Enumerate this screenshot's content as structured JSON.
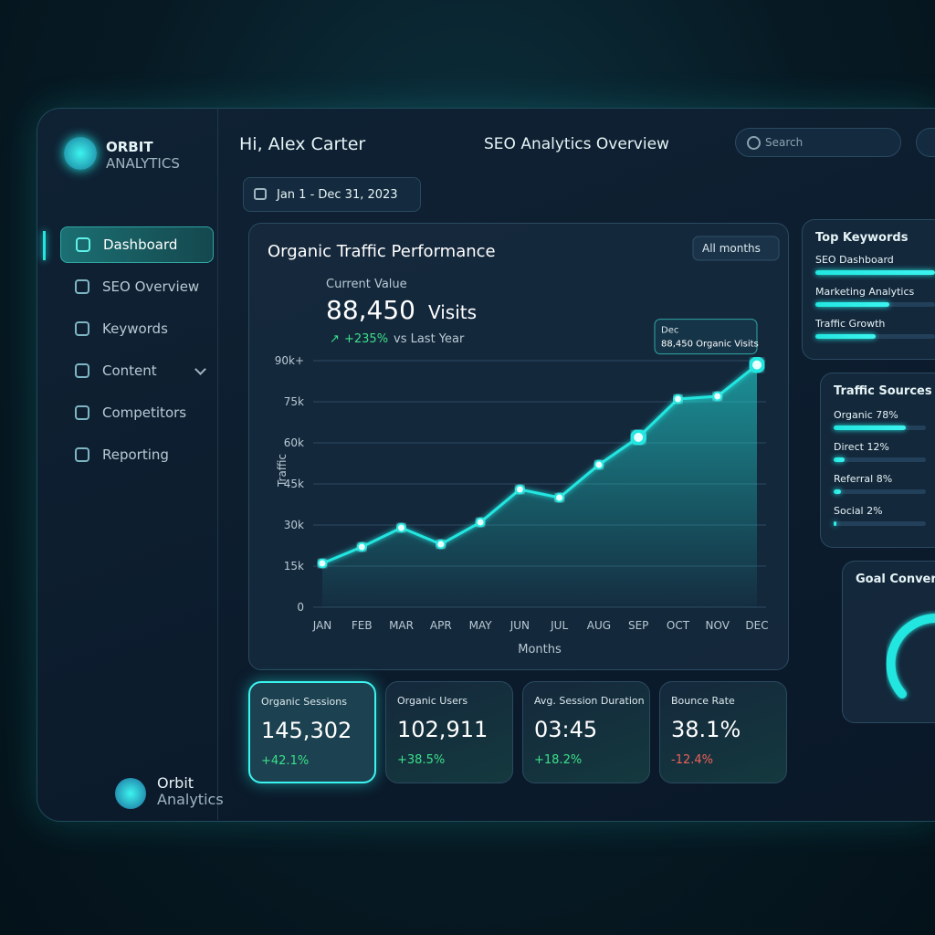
{
  "sidebar": {
    "brand": {
      "name": "ORBIT",
      "tagline": "ANALYTICS"
    },
    "nav": [
      {
        "label": "Dashboard",
        "active": true
      },
      {
        "label": "SEO Overview"
      },
      {
        "label": "Keywords"
      },
      {
        "label": "Content",
        "expandable": true
      },
      {
        "label": "Competitors"
      },
      {
        "label": "Reporting"
      }
    ],
    "footer_brand": {
      "name": "Orbit",
      "tagline": "Analytics"
    }
  },
  "header": {
    "greeting": "Hi, Alex Carter",
    "title": "SEO Analytics Overview",
    "search_placeholder": "Search",
    "date_range": "Jan 1 - Dec 31, 2023"
  },
  "chart_data": {
    "type": "line",
    "title": "Organic Traffic Performance",
    "filter": "All months",
    "current_value_label": "Current Value",
    "current_value": "88,450",
    "current_value_unit": "Visits",
    "change": "+235%",
    "change_note": "vs Last Year",
    "y_label": "Traffic",
    "x_label": "Months",
    "categories": [
      "JAN",
      "FEB",
      "MAR",
      "APR",
      "MAY",
      "JUN",
      "JUL",
      "AUG",
      "SEP",
      "OCT",
      "NOV",
      "DEC"
    ],
    "values": [
      16000,
      22000,
      29000,
      23000,
      31000,
      43000,
      40000,
      52000,
      62000,
      76000,
      77000,
      88450
    ],
    "color": "#22e6e0",
    "ylim": [
      0,
      100000
    ],
    "yticks": [
      0,
      {
        "value": 15000,
        "label": "15k"
      },
      {
        "value": 30000,
        "label": "30k"
      },
      {
        "value": 45000,
        "label": "45k"
      },
      {
        "value": 60000,
        "label": "60k"
      },
      {
        "value": 75000,
        "label": "75k"
      },
      {
        "value": 90000,
        "label": "90k+"
      }
    ],
    "grid": true,
    "tooltip": {
      "title": "Dec",
      "text": "88,450 Organic Visits"
    }
  },
  "top_keywords": {
    "title": "Top Keywords",
    "items": [
      {
        "label": "SEO Dashboard",
        "value": 100
      },
      {
        "label": "Marketing Analytics",
        "value": 62
      },
      {
        "label": "Traffic Growth",
        "value": 50
      }
    ]
  },
  "traffic_sources": {
    "title": "Traffic Sources",
    "items": [
      {
        "name": "Organic",
        "label": "78%",
        "value": 78
      },
      {
        "name": "Direct",
        "label": "12%",
        "value": 12
      },
      {
        "name": "Referral",
        "label": "8%",
        "value": 8
      },
      {
        "name": "Social",
        "label": "2%",
        "value": 2
      }
    ]
  },
  "goal_conversion": {
    "title": "Goal Conversion"
  },
  "kpis": [
    {
      "title": "Organic Sessions",
      "value": "145,302",
      "change": "+42.1%",
      "highlight": true
    },
    {
      "title": "Organic Users",
      "value": "102,911",
      "change": "+38.5%"
    },
    {
      "title": "Avg. Session Duration",
      "value": "03:45",
      "change": "+18.2%"
    },
    {
      "title": "Bounce Rate",
      "value": "38.1%",
      "change": "-12.4%"
    }
  ]
}
